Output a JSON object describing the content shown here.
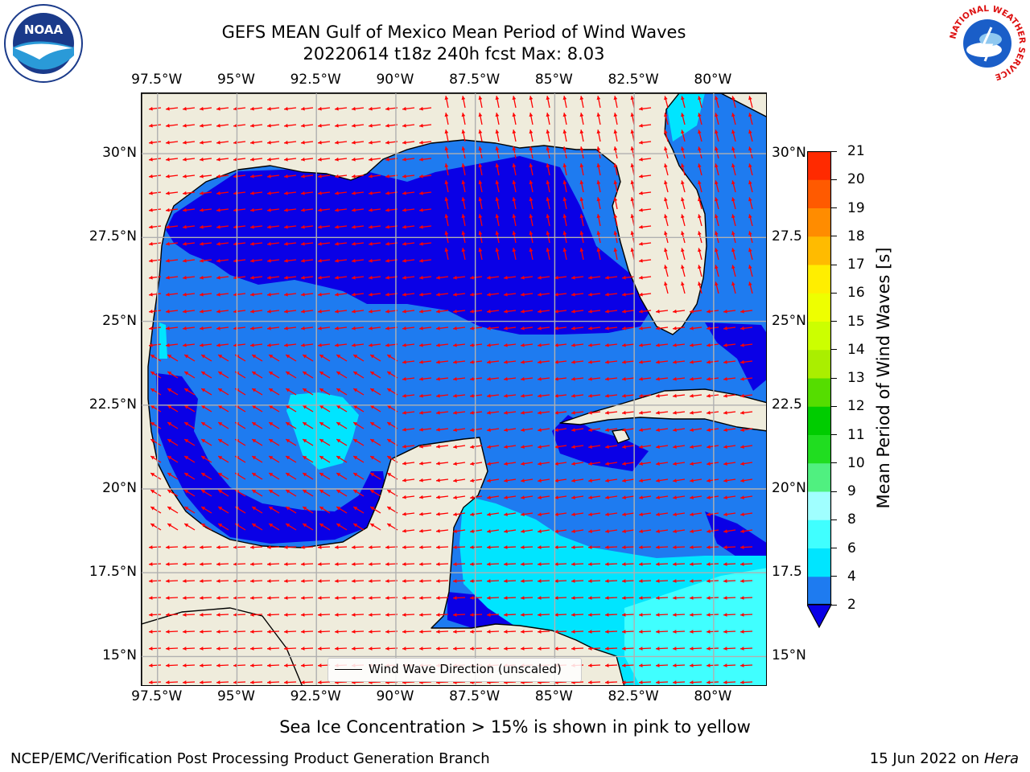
{
  "title": {
    "line1": "GEFS MEAN Gulf of Mexico Mean Period of Wind Waves",
    "line2": "20220614 t18z 240h fcst   Max: 8.03"
  },
  "map": {
    "lon_labels": [
      "97.5°W",
      "95°W",
      "92.5°W",
      "90°W",
      "87.5°W",
      "85°W",
      "82.5°W",
      "80°W"
    ],
    "lat_labels_left": [
      "30°N",
      "27.5°N",
      "25°N",
      "22.5°N",
      "20°N",
      "17.5°N",
      "15°N"
    ],
    "lat_labels_right": [
      "30°N",
      "27.5",
      "25°N",
      "22.5",
      "20°N",
      "17.5",
      "15°N"
    ],
    "extent": {
      "lon_min": -98,
      "lon_max": -78.3,
      "lat_min": 14.1,
      "lat_max": 31.8
    },
    "legend_label": "Wind Wave Direction (unscaled)",
    "colors": {
      "land": "#efecdc",
      "coast": "#000000",
      "grid": "#b0b0b0",
      "arrows": "#ff0000"
    }
  },
  "colorbar": {
    "label": "Mean Period of Wind Waves [s]",
    "ticks": [
      "2",
      "4",
      "6",
      "8",
      "9",
      "10",
      "11",
      "12",
      "13",
      "14",
      "15",
      "16",
      "17",
      "18",
      "19",
      "20",
      "21"
    ],
    "levels": [
      2,
      4,
      6,
      8,
      9,
      10,
      11,
      12,
      13,
      14,
      15,
      16,
      17,
      18,
      19,
      20,
      21
    ],
    "colors": [
      "#1e7bf0",
      "#00e5ff",
      "#40ffff",
      "#a0ffff",
      "#50f080",
      "#20dd20",
      "#00cc00",
      "#55dd00",
      "#aaee00",
      "#ccff00",
      "#eeff00",
      "#ffee00",
      "#ffbb00",
      "#ff8c00",
      "#ff5a00",
      "#ff2a00"
    ],
    "under_color": "#0a00e6"
  },
  "annotations": {
    "ice_note": "Sea Ice Concentration > 15% is shown in pink to yellow",
    "footer_left": "NCEP/EMC/Verification Post Processing Product Generation Branch",
    "footer_date": "15 Jun 2022 on",
    "footer_machine": "Hera"
  },
  "logos": {
    "left": "noaa-logo",
    "right": "nws-logo",
    "noaa_text": "NOAA",
    "nws_ring_text": "NATIONAL WEATHER SERVICE"
  }
}
